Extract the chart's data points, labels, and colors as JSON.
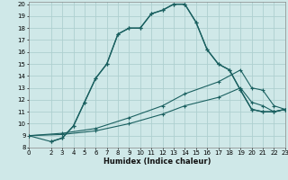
{
  "title": "",
  "xlabel": "Humidex (Indice chaleur)",
  "bg_color": "#cfe8e8",
  "grid_color": "#aecfcf",
  "line_color": "#1a6060",
  "xlim": [
    0,
    23
  ],
  "ylim": [
    8,
    20.2
  ],
  "xticks": [
    0,
    2,
    3,
    4,
    5,
    6,
    7,
    8,
    9,
    10,
    11,
    12,
    13,
    14,
    15,
    16,
    17,
    18,
    19,
    20,
    21,
    22,
    23
  ],
  "yticks": [
    8,
    9,
    10,
    11,
    12,
    13,
    14,
    15,
    16,
    17,
    18,
    19,
    20
  ],
  "lines": [
    {
      "x": [
        2,
        3,
        4,
        5,
        6,
        7,
        8,
        9,
        10,
        11,
        12,
        13,
        14,
        15,
        16,
        17,
        18,
        19,
        20,
        21,
        22,
        23
      ],
      "y": [
        8.5,
        8.8,
        9.8,
        11.8,
        13.8,
        15.0,
        17.5,
        18.0,
        18.0,
        19.2,
        19.5,
        20.0,
        20.0,
        18.5,
        16.2,
        15.0,
        14.5,
        12.8,
        11.2,
        11.0,
        11.0,
        11.2
      ],
      "lw": 1.0,
      "ms": 3.5,
      "mew": 0.9
    },
    {
      "x": [
        0,
        2,
        3,
        4,
        5,
        6,
        7,
        8,
        9,
        10,
        11,
        12,
        13,
        14,
        15,
        16,
        17,
        18,
        19,
        20,
        21,
        22,
        23
      ],
      "y": [
        9.0,
        8.5,
        8.8,
        9.8,
        11.8,
        13.8,
        15.0,
        17.5,
        18.0,
        18.0,
        19.2,
        19.5,
        20.0,
        20.0,
        18.5,
        16.2,
        15.0,
        14.5,
        12.8,
        11.2,
        11.0,
        11.0,
        11.2
      ],
      "lw": 0.8,
      "ms": 3.0,
      "mew": 0.8
    },
    {
      "x": [
        0,
        3,
        6,
        9,
        12,
        14,
        17,
        19,
        20,
        21,
        22,
        23
      ],
      "y": [
        9.0,
        9.2,
        9.6,
        10.5,
        11.5,
        12.5,
        13.5,
        14.5,
        13.0,
        12.8,
        11.5,
        11.2
      ],
      "lw": 0.8,
      "ms": 3.0,
      "mew": 0.8
    },
    {
      "x": [
        0,
        3,
        6,
        9,
        12,
        14,
        17,
        19,
        20,
        21,
        22,
        23
      ],
      "y": [
        9.0,
        9.1,
        9.4,
        10.0,
        10.8,
        11.5,
        12.2,
        13.0,
        11.8,
        11.5,
        11.0,
        11.2
      ],
      "lw": 0.8,
      "ms": 3.0,
      "mew": 0.8
    }
  ]
}
